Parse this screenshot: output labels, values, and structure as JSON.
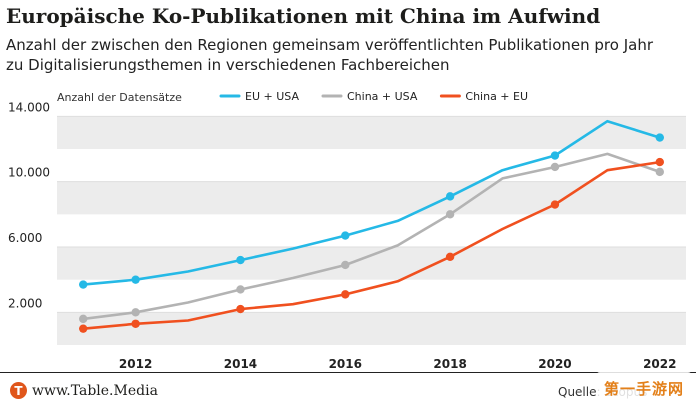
{
  "header": {
    "title": "Europäische Ko-Publikationen mit China im Aufwind",
    "subtitle_line1": "Anzahl der zwischen den Regionen gemeinsam veröffentlichten Publikationen pro Jahr",
    "subtitle_line2": "zu Digitalisierungsthemen in verschiedenen Fachbereichen"
  },
  "chart_data": {
    "type": "line",
    "ylabel": "Anzahl der Datensätze",
    "ylim": [
      0,
      15000
    ],
    "xlim": [
      2010.5,
      2022.5
    ],
    "yticks": [
      2000,
      6000,
      10000,
      14000
    ],
    "ytick_labels": [
      "2.000",
      "6.000",
      "10.000",
      "14.000"
    ],
    "xticks": [
      2012,
      2014,
      2016,
      2018,
      2020,
      2022
    ],
    "xtick_labels": [
      "2012",
      "2014",
      "2016",
      "2018",
      "2020",
      "2022"
    ],
    "x": [
      2011,
      2012,
      2013,
      2014,
      2015,
      2016,
      2017,
      2018,
      2019,
      2020,
      2021,
      2022
    ],
    "legend_position": "top",
    "series": [
      {
        "name": "EU + USA",
        "color": "#25b9e6",
        "values": [
          3700,
          4000,
          4500,
          5200,
          5900,
          6700,
          7600,
          9100,
          10700,
          11600,
          13700,
          12700
        ]
      },
      {
        "name": "China + USA",
        "color": "#b3b3b3",
        "values": [
          1600,
          2000,
          2600,
          3400,
          4100,
          4900,
          6100,
          8000,
          10200,
          10900,
          11700,
          10600
        ]
      },
      {
        "name": "China + EU",
        "color": "#f0501f",
        "values": [
          1000,
          1300,
          1500,
          2200,
          2500,
          3100,
          3900,
          5400,
          7100,
          8600,
          10700,
          11200
        ]
      }
    ],
    "marker_years": [
      2011,
      2012,
      2014,
      2016,
      2018,
      2020,
      2022
    ]
  },
  "footer": {
    "brand_initial": "T",
    "brand": "www.Table.Media",
    "source": "Quelle: Scopus",
    "watermark": "第一手游网"
  }
}
